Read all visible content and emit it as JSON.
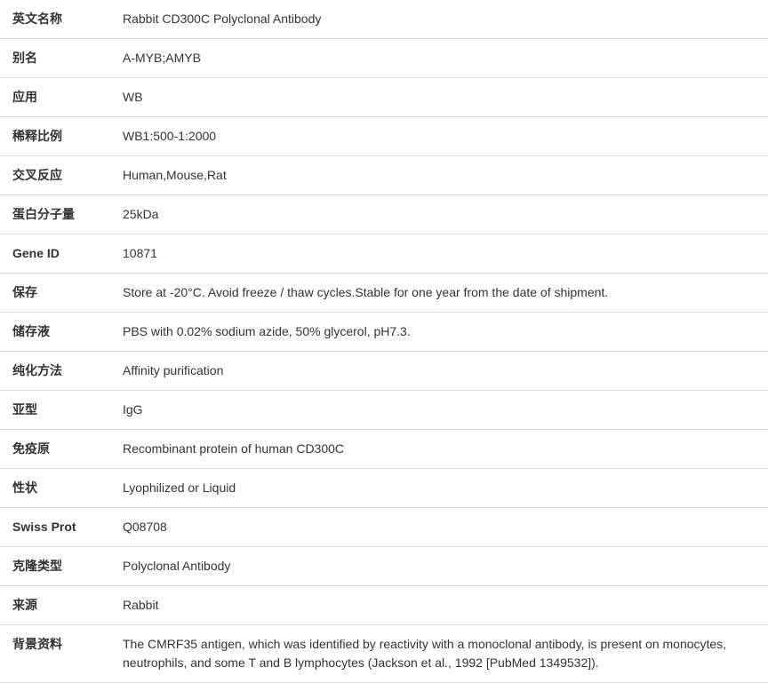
{
  "table": {
    "rows": [
      {
        "label": "英文名称",
        "value": "Rabbit CD300C Polyclonal Antibody"
      },
      {
        "label": "别名",
        "value": "A-MYB;AMYB"
      },
      {
        "label": "应用",
        "value": "WB"
      },
      {
        "label": "稀释比例",
        "value": "WB1:500-1:2000"
      },
      {
        "label": "交叉反应",
        "value": "Human,Mouse,Rat"
      },
      {
        "label": "蛋白分子量",
        "value": "25kDa"
      },
      {
        "label": "Gene ID",
        "value": "10871"
      },
      {
        "label": "保存",
        "value": "Store at -20°C. Avoid freeze / thaw cycles.Stable for one year from the date of shipment."
      },
      {
        "label": "储存液",
        "value": "PBS with 0.02% sodium azide, 50% glycerol, pH7.3."
      },
      {
        "label": "纯化方法",
        "value": "Affinity purification"
      },
      {
        "label": "亚型",
        "value": "IgG"
      },
      {
        "label": "免疫原",
        "value": "Recombinant protein of human CD300C"
      },
      {
        "label": "性状",
        "value": "Lyophilized or Liquid"
      },
      {
        "label": "Swiss Prot",
        "value": "Q08708"
      },
      {
        "label": "克隆类型",
        "value": "Polyclonal Antibody"
      },
      {
        "label": "来源",
        "value": "Rabbit"
      },
      {
        "label": "背景资料",
        "value": "The CMRF35 antigen, which was identified by reactivity with a monoclonal antibody, is present on monocytes, neutrophils, and some T and B lymphocytes (Jackson et al., 1992 [PubMed 1349532])."
      }
    ],
    "border_color": "#dddddd",
    "font_size": 14,
    "label_width": 124,
    "background_color": "#ffffff",
    "text_color": "#333333"
  }
}
